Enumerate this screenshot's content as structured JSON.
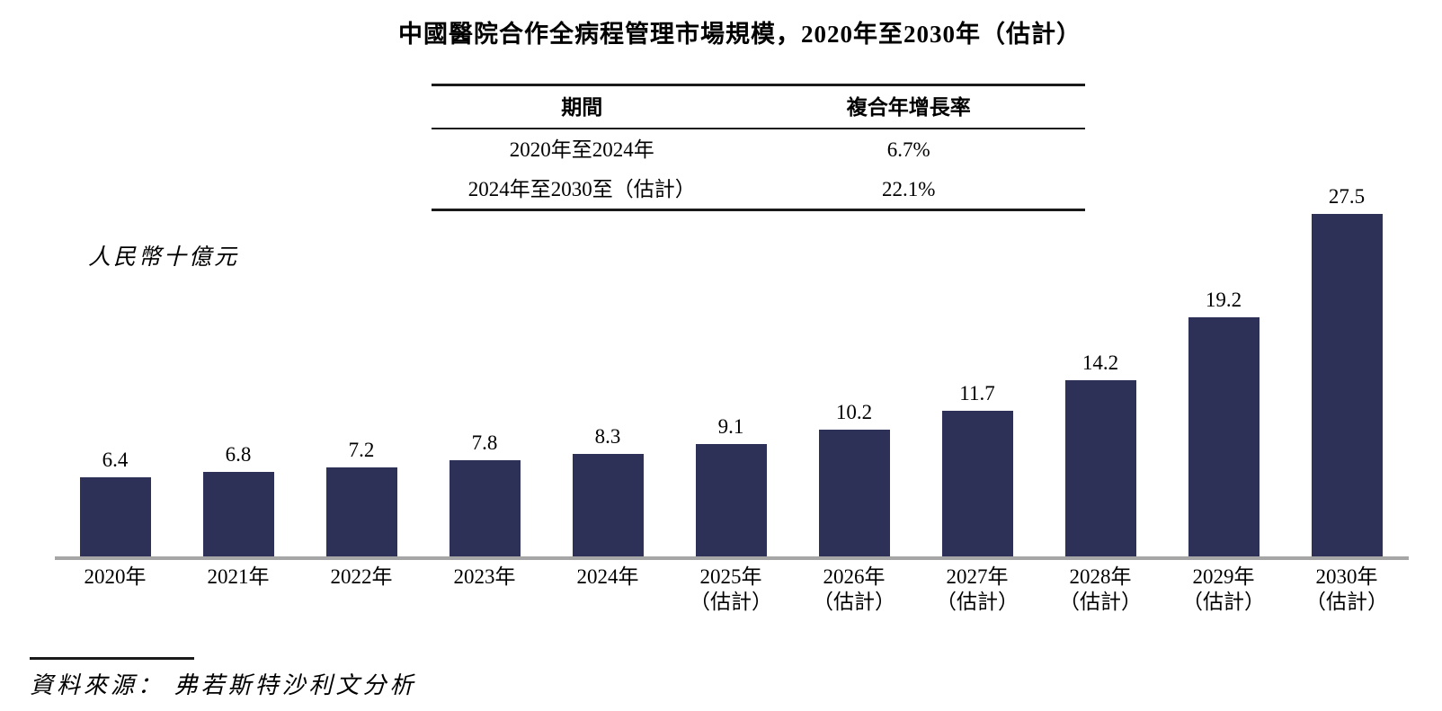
{
  "title": "中國醫院合作全病程管理市場規模，2020年至2030年（估計）",
  "unit_label": "人民幣十億元",
  "table": {
    "col1_header": "期間",
    "col2_header": "複合年增長率",
    "rows": [
      {
        "period": "2020年至2024年",
        "cagr": "6.7%"
      },
      {
        "period": "2024年至2030至（估計）",
        "cagr": "22.1%"
      }
    ]
  },
  "source_text": "資料來源： 弗若斯特沙利文分析",
  "colors": {
    "bar": "#2d3157",
    "axis_line": "#a6a6a6",
    "text": "#000000"
  },
  "chart_data": {
    "type": "bar",
    "title": "中國醫院合作全病程管理市場規模，2020年至2030年（估計）",
    "xlabel": "",
    "ylabel": "人民幣十億元",
    "ylim": [
      0,
      30
    ],
    "grid": false,
    "legend_position": "none",
    "categories": [
      "2020年",
      "2021年",
      "2022年",
      "2023年",
      "2024年",
      "2025年（估計）",
      "2026年（估計）",
      "2027年（估計）",
      "2028年（估計）",
      "2029年（估計）",
      "2030年（估計）"
    ],
    "values": [
      6.4,
      6.8,
      7.2,
      7.8,
      8.3,
      9.1,
      10.2,
      11.7,
      14.2,
      19.2,
      27.5
    ],
    "bars": [
      {
        "label": "2020年",
        "sublabel": "",
        "value": 6.4
      },
      {
        "label": "2021年",
        "sublabel": "",
        "value": 6.8
      },
      {
        "label": "2022年",
        "sublabel": "",
        "value": 7.2
      },
      {
        "label": "2023年",
        "sublabel": "",
        "value": 7.8
      },
      {
        "label": "2024年",
        "sublabel": "",
        "value": 8.3
      },
      {
        "label": "2025年",
        "sublabel": "（估計）",
        "value": 9.1
      },
      {
        "label": "2026年",
        "sublabel": "（估計）",
        "value": 10.2
      },
      {
        "label": "2027年",
        "sublabel": "（估計）",
        "value": 11.7
      },
      {
        "label": "2028年",
        "sublabel": "（估計）",
        "value": 14.2
      },
      {
        "label": "2029年",
        "sublabel": "（估計）",
        "value": 19.2
      },
      {
        "label": "2030年",
        "sublabel": "（估計）",
        "value": 27.5
      }
    ],
    "annotations": {
      "cagr_table_headers": [
        "期間",
        "複合年增長率"
      ],
      "cagr_table_rows": [
        [
          "2020年至2024年",
          "6.7%"
        ],
        [
          "2024年至2030至（估計）",
          "22.1%"
        ]
      ],
      "source": "資料來源： 弗若斯特沙利文分析"
    }
  }
}
